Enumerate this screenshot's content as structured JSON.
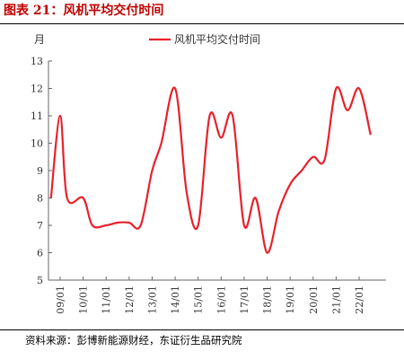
{
  "figure": {
    "caption": "图表 21：风机平均交付时间",
    "source": "资料来源：彭博新能源财经，东证衍生品研究院"
  },
  "colors": {
    "caption": "#c00000",
    "series": "#e8212b",
    "axis": "#666666"
  },
  "chart_data": {
    "type": "line",
    "title": "",
    "xlabel": "",
    "ylabel": "月",
    "ylim": [
      5,
      13
    ],
    "yticks": [
      5,
      6,
      7,
      8,
      9,
      10,
      11,
      12,
      13
    ],
    "xticks": [
      "09/01",
      "10/01",
      "11/01",
      "12/01",
      "13/01",
      "14/01",
      "15/01",
      "16/01",
      "17/01",
      "18/01",
      "19/01",
      "20/01",
      "21/01",
      "22/01"
    ],
    "legend": "top-center",
    "grid": false,
    "series": [
      {
        "name": "风机平均交付时间",
        "x": [
          2008.6,
          2009.0,
          2009.3,
          2010.0,
          2010.4,
          2011.0,
          2011.5,
          2012.0,
          2012.5,
          2013.0,
          2013.4,
          2014.0,
          2014.5,
          2015.0,
          2015.5,
          2016.0,
          2016.5,
          2017.0,
          2017.5,
          2018.0,
          2018.5,
          2019.0,
          2019.5,
          2020.0,
          2020.5,
          2021.0,
          2021.5,
          2022.0,
          2022.5
        ],
        "y": [
          8,
          11,
          8,
          8,
          7,
          7,
          7.1,
          7.1,
          7,
          9,
          10,
          12,
          8.2,
          7,
          11,
          10.2,
          11,
          7,
          8,
          6,
          7.5,
          8.5,
          9,
          9.5,
          9.4,
          12,
          11.2,
          12,
          10.3
        ]
      }
    ]
  }
}
